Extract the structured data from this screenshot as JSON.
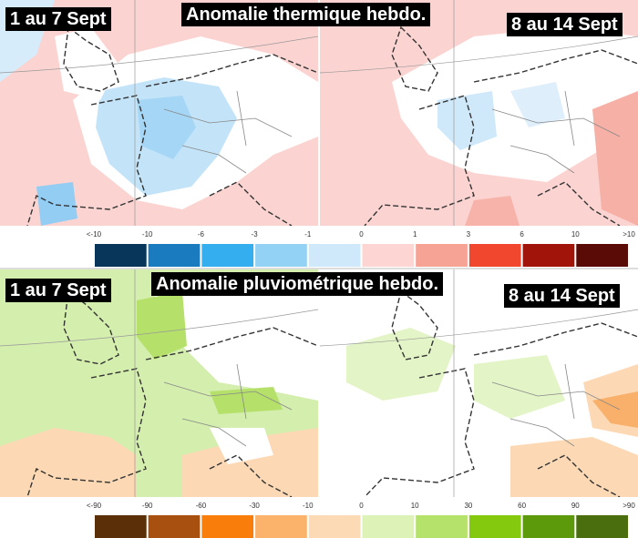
{
  "panels": [
    {
      "title": "Anomalie thermique hebdo.",
      "period_left": "1 au 7 Sept",
      "period_right": "8 au 14 Sept",
      "legend": {
        "labels": [
          "<-10",
          -10,
          -6,
          -3,
          -1,
          0,
          1,
          3,
          6,
          10,
          ">10"
        ],
        "colors": [
          "#08365a",
          "#1a7bbf",
          "#35aef0",
          "#93d1f5",
          "#cfe9fa",
          "#fdd6d4",
          "#f6a396",
          "#f1472f",
          "#a11409",
          "#5a0b06"
        ]
      }
    },
    {
      "title": "Anomalie pluviométrique hebdo.",
      "period_left": "1 au 7 Sept",
      "period_right": "8 au 14 Sept",
      "legend": {
        "labels": [
          "<-90",
          -90,
          -60,
          -30,
          -10,
          0,
          10,
          30,
          60,
          90,
          ">90"
        ],
        "colors": [
          "#5b3008",
          "#a7500f",
          "#f87d0b",
          "#fbb36b",
          "#fcdab5",
          "#ddf2b6",
          "#b5e26b",
          "#85c90e",
          "#5d9a0b",
          "#4a6d0d"
        ]
      }
    }
  ]
}
